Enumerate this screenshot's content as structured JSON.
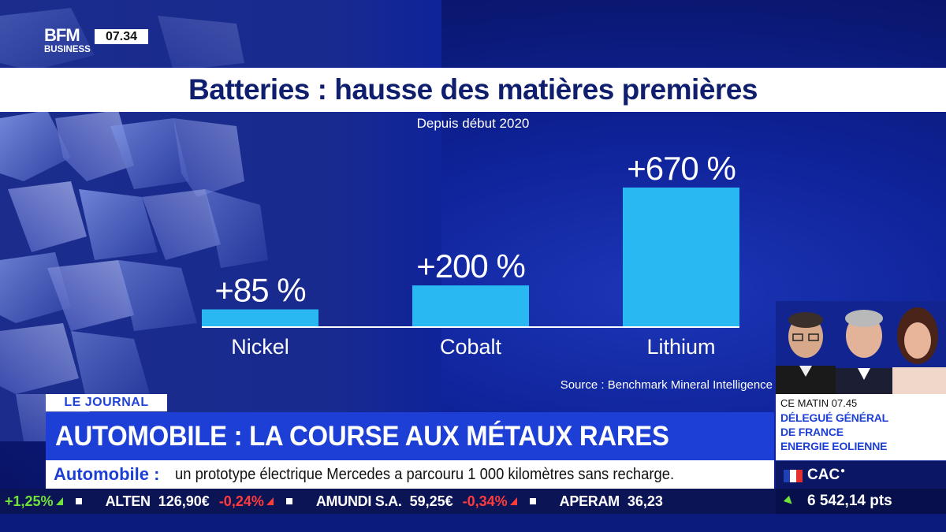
{
  "channel": {
    "logo_line1": "BFM",
    "logo_line2": "BUSINESS",
    "time": "07.34"
  },
  "chart_data": {
    "type": "bar",
    "title": "Batteries : hausse des matières premières",
    "subtitle": "Depuis début 2020",
    "categories": [
      "Nickel",
      "Cobalt",
      "Lithium"
    ],
    "values": [
      85,
      200,
      670
    ],
    "value_labels": [
      "+85 %",
      "+200 %",
      "+670 %"
    ],
    "unit": "%",
    "ylim": [
      0,
      700
    ],
    "bar_color": "#29b8f2",
    "grid": false,
    "source": "Source : Benchmark Mineral Intelligence"
  },
  "segment": {
    "tag": "LE JOURNAL",
    "headline": "AUTOMOBILE : LA COURSE AUX MÉTAUX RARES"
  },
  "info_panel": {
    "time_label": "CE MATIN 07.45",
    "lines": [
      "DÉLEGUÉ GÉNÉRAL",
      "DE FRANCE",
      "ENERGIE EOLIENNE"
    ]
  },
  "news": {
    "keyword": "Automobile :",
    "text": "un prototype électrique Mercedes a parcouru 1 000 kilomètres sans recharge."
  },
  "index": {
    "name": "CAC",
    "value": "6 542,14 pts",
    "flag_colors": [
      "#1f3fb5",
      "#ffffff",
      "#e63030"
    ]
  },
  "ticker": [
    {
      "name": "",
      "price": "",
      "change": "+1,25%",
      "direction": "up"
    },
    {
      "name": "ALTEN",
      "price": "126,90€",
      "change": "-0,24%",
      "direction": "down"
    },
    {
      "name": "AMUNDI S.A.",
      "price": "59,25€",
      "change": "-0,34%",
      "direction": "down"
    },
    {
      "name": "APERAM",
      "price": "36,23",
      "change": "",
      "direction": "up"
    }
  ],
  "colors": {
    "accent": "#1d3fd6",
    "title_text": "#101e6e",
    "up": "#6fe33a",
    "down": "#ff3b3b"
  }
}
